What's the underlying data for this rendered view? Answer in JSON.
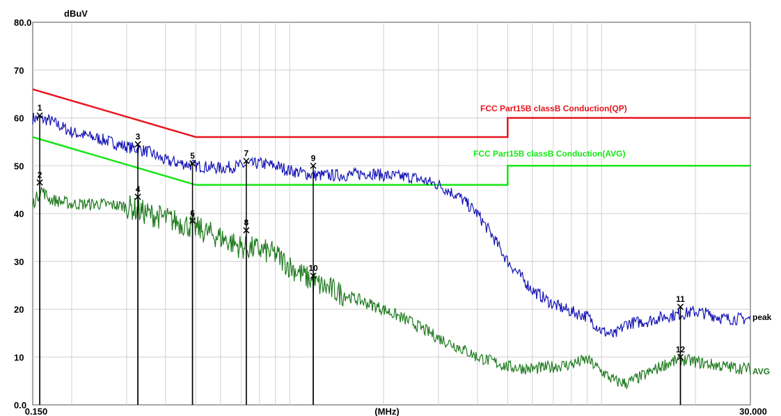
{
  "chart_data": {
    "type": "line",
    "ylabel": "dBuV",
    "xlabel": "(MHz)",
    "x_scale": "log",
    "xlim": [
      0.15,
      30
    ],
    "ylim": [
      0,
      80
    ],
    "x_tick_labels": [
      "0.150",
      "30.000"
    ],
    "y_ticks": [
      0,
      10,
      20,
      30,
      40,
      50,
      60,
      70,
      80
    ],
    "y_tick_labels": [
      "0.0",
      "10",
      "20",
      "30",
      "40",
      "50",
      "60",
      "70",
      "80.0"
    ],
    "grid": true,
    "limit_lines": [
      {
        "name": "FCC  Part15B classB Conduction(QP)",
        "color": "#e8141e",
        "x": [
          0.15,
          0.5,
          5,
          5,
          30
        ],
        "y": [
          66,
          56,
          56,
          60,
          60
        ]
      },
      {
        "name": "FCC  Part15B classB Conduction(AVG)",
        "color": "#14e614",
        "x": [
          0.15,
          0.5,
          5,
          5,
          30
        ],
        "y": [
          56,
          46,
          46,
          50,
          50
        ]
      }
    ],
    "series": [
      {
        "name": "peak",
        "color": "#1414b4",
        "x": [
          0.15,
          0.17,
          0.2,
          0.25,
          0.3,
          0.35,
          0.4,
          0.45,
          0.5,
          0.6,
          0.7,
          0.8,
          0.9,
          1.0,
          1.2,
          1.5,
          1.8,
          2.0,
          2.5,
          3.0,
          3.5,
          4.0,
          4.5,
          5.0,
          6.0,
          7.0,
          8.0,
          9.0,
          10.0,
          11.0,
          12.0,
          14.0,
          16.0,
          18.0,
          20.0,
          22.0,
          25.0,
          30.0
        ],
        "y": [
          60,
          59.5,
          57,
          55.5,
          54,
          53,
          51,
          50.5,
          50,
          49.5,
          50,
          50.5,
          50,
          49,
          48,
          48,
          48.5,
          48,
          47.5,
          46,
          43.5,
          40,
          35,
          30,
          24,
          21,
          19.5,
          18.5,
          15.5,
          14.5,
          17,
          17.5,
          18.5,
          19,
          19.5,
          19,
          18,
          18
        ]
      },
      {
        "name": "AVG",
        "color": "#1e7a1e",
        "x": [
          0.15,
          0.16,
          0.17,
          0.2,
          0.25,
          0.3,
          0.35,
          0.4,
          0.45,
          0.5,
          0.6,
          0.7,
          0.8,
          0.9,
          1.0,
          1.2,
          1.5,
          2.0,
          2.5,
          3.0,
          3.5,
          4.0,
          4.5,
          5.0,
          6.0,
          7.0,
          8.0,
          9.0,
          10.0,
          11.0,
          12.0,
          14.0,
          16.0,
          18.0,
          20.0,
          22.0,
          25.0,
          30.0
        ],
        "y": [
          42,
          45,
          43,
          42,
          42,
          41.5,
          40,
          39,
          38,
          37,
          35,
          33,
          32.5,
          31.5,
          29,
          25.5,
          23,
          20,
          17,
          14,
          12,
          10,
          9,
          8,
          7.5,
          8,
          8.5,
          9.5,
          7,
          5,
          4.5,
          6.5,
          8.5,
          9.5,
          9,
          8.5,
          8,
          7.5
        ]
      }
    ],
    "markers": [
      {
        "label": "1",
        "x": 0.158,
        "y": 60.5
      },
      {
        "label": "2",
        "x": 0.158,
        "y": 46.5
      },
      {
        "label": "3",
        "x": 0.326,
        "y": 54.5
      },
      {
        "label": "4",
        "x": 0.326,
        "y": 43.5
      },
      {
        "label": "5",
        "x": 0.488,
        "y": 50.5
      },
      {
        "label": "6",
        "x": 0.488,
        "y": 38.5
      },
      {
        "label": "7",
        "x": 0.726,
        "y": 51.0
      },
      {
        "label": "8",
        "x": 0.726,
        "y": 36.5
      },
      {
        "label": "9",
        "x": 1.19,
        "y": 50.0
      },
      {
        "label": "10",
        "x": 1.19,
        "y": 27.0
      },
      {
        "label": "11",
        "x": 17.9,
        "y": 20.5
      },
      {
        "label": "12",
        "x": 17.9,
        "y": 10.0
      }
    ]
  }
}
